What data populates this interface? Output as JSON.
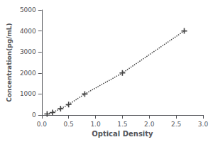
{
  "chart_data": {
    "type": "line",
    "xlabel": "Optical Density",
    "ylabel": "Concentration(pg/mL)",
    "x": [
      0.1,
      0.2,
      0.35,
      0.5,
      0.8,
      1.5,
      2.65
    ],
    "values": [
      50,
      120,
      300,
      500,
      1000,
      2000,
      4000
    ],
    "color": "#444444",
    "marker": "plus",
    "line_style": "dotted",
    "xlim": [
      0,
      3
    ],
    "ylim": [
      0,
      5000
    ],
    "xticks": [
      {
        "value": 0,
        "label": "0.0"
      },
      {
        "value": 0.5,
        "label": "0.5"
      },
      {
        "value": 1,
        "label": "1.0"
      },
      {
        "value": 1.5,
        "label": "1.5"
      },
      {
        "value": 2,
        "label": "2.0"
      },
      {
        "value": 2.5,
        "label": "2.5"
      },
      {
        "value": 3,
        "label": "3.0"
      }
    ],
    "yticks": [
      0,
      1000,
      2000,
      3000,
      4000,
      5000
    ],
    "grid": false
  }
}
